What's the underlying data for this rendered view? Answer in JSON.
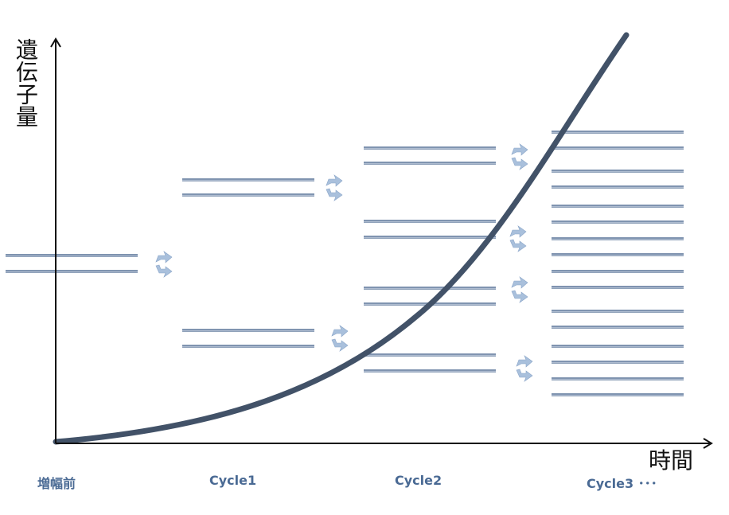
{
  "diagram": {
    "y_axis_title": "遺伝子量",
    "x_axis_title": "時間",
    "stages": [
      {
        "label": "増幅前",
        "strand_pairs": 1
      },
      {
        "label": "Cycle1",
        "strand_pairs": 2
      },
      {
        "label": "Cycle2",
        "strand_pairs": 4
      },
      {
        "label": "Cycle3 ･･･",
        "strand_pairs": 8
      }
    ],
    "curve_type": "exponential growth",
    "colors": {
      "axis": "#111111",
      "curve": "#425268",
      "strand": "#8094b0",
      "strand_highlight": "#e8eef6",
      "arrow": "#a9c0dc",
      "label": "#4a6a94"
    },
    "icons": [
      "cycle-arrow-icon"
    ]
  }
}
